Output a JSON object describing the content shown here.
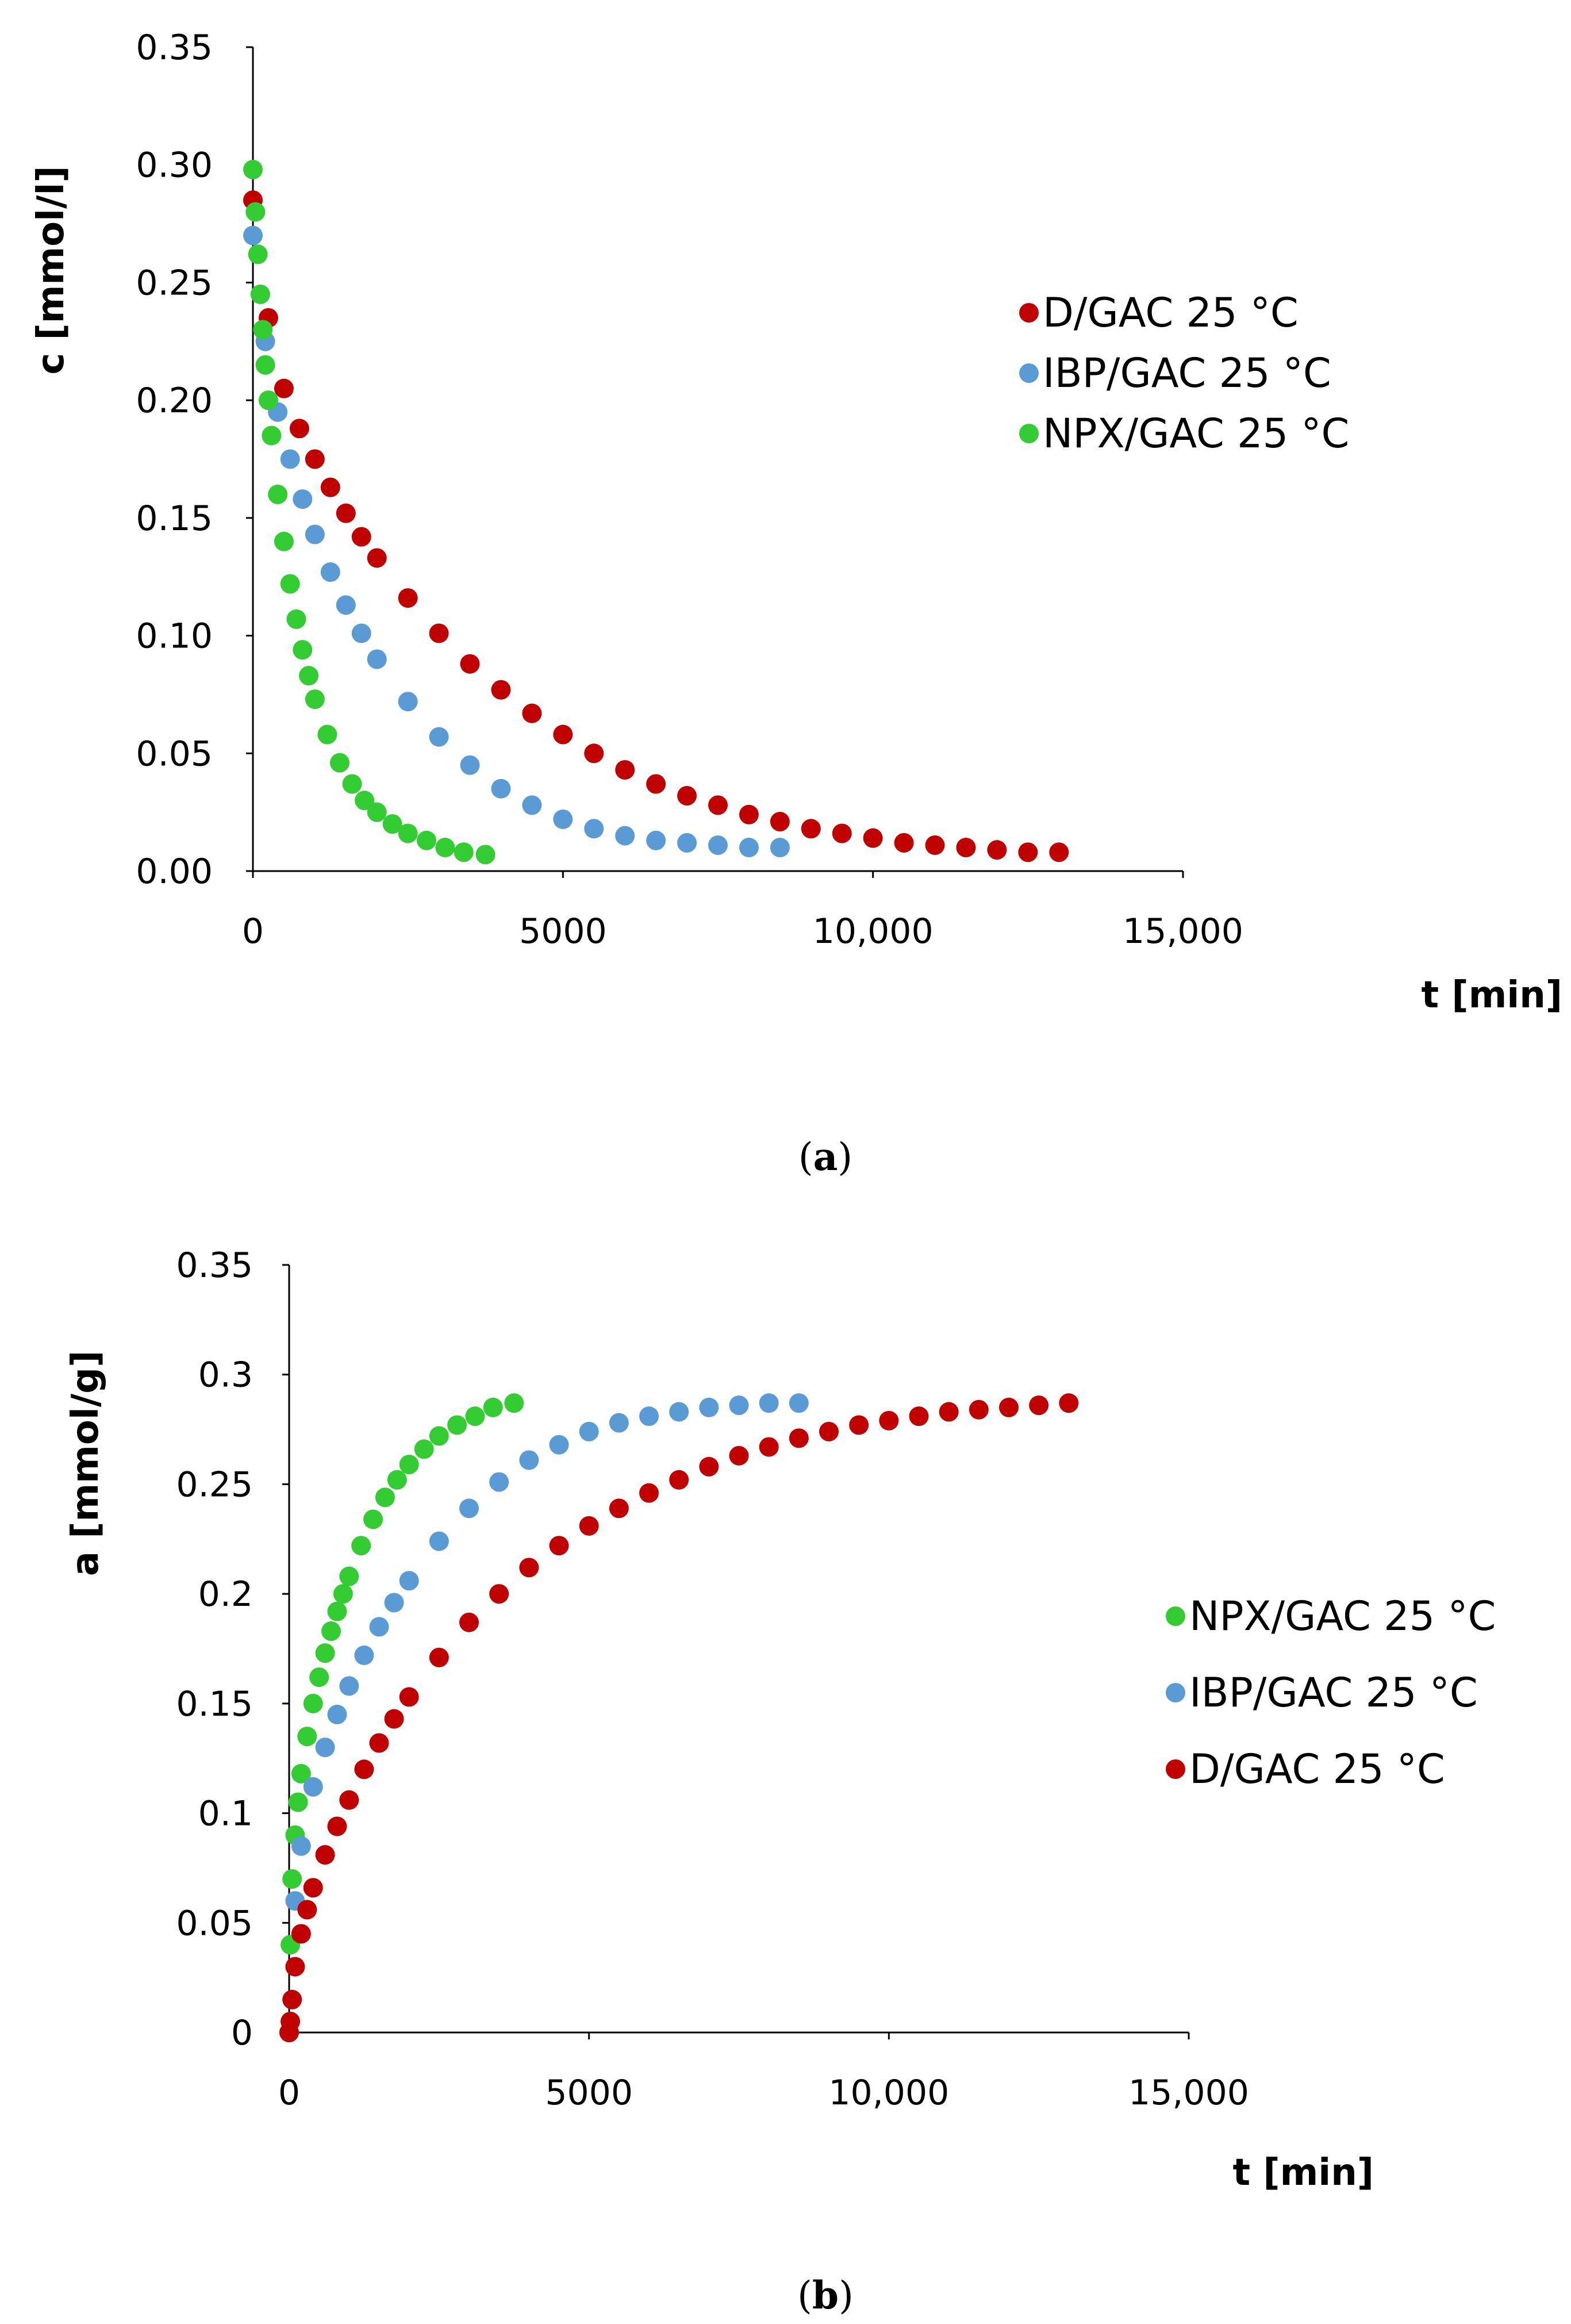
{
  "chart_data": [
    {
      "type": "scatter",
      "caption_letter": "a",
      "xlabel": "t [min]",
      "ylabel": "c [mmol/l]",
      "xlim": [
        0,
        15000
      ],
      "ylim": [
        0,
        0.35
      ],
      "xticks": [
        0,
        5000,
        10000,
        15000
      ],
      "xtick_labels": [
        "0",
        "5000",
        "10,000",
        "15,000"
      ],
      "yticks": [
        0,
        0.05,
        0.1,
        0.15,
        0.2,
        0.25,
        0.3,
        0.35
      ],
      "ytick_labels": [
        "0.00",
        "0.05",
        "0.10",
        "0.15",
        "0.20",
        "0.25",
        "0.30",
        "0.35"
      ],
      "grid": false,
      "legend": "right",
      "series": [
        {
          "name": "D/GAC 25 °C",
          "color": "#c00000",
          "x": [
            0,
            250,
            500,
            750,
            1000,
            1250,
            1500,
            1750,
            2000,
            2500,
            3000,
            3500,
            4000,
            4500,
            5000,
            5500,
            6000,
            6500,
            7000,
            7500,
            8000,
            8500,
            9000,
            9500,
            10000,
            10500,
            11000,
            11500,
            12000,
            12500,
            13000
          ],
          "y": [
            0.285,
            0.235,
            0.205,
            0.188,
            0.175,
            0.163,
            0.152,
            0.142,
            0.133,
            0.116,
            0.101,
            0.088,
            0.077,
            0.067,
            0.058,
            0.05,
            0.043,
            0.037,
            0.032,
            0.028,
            0.024,
            0.021,
            0.018,
            0.016,
            0.014,
            0.012,
            0.011,
            0.01,
            0.009,
            0.008,
            0.008
          ]
        },
        {
          "name": "IBP/GAC 25 °C",
          "color": "#5b9bd5",
          "x": [
            0,
            200,
            400,
            600,
            800,
            1000,
            1250,
            1500,
            1750,
            2000,
            2500,
            3000,
            3500,
            4000,
            4500,
            5000,
            5500,
            6000,
            6500,
            7000,
            7500,
            8000,
            8500
          ],
          "y": [
            0.27,
            0.225,
            0.195,
            0.175,
            0.158,
            0.143,
            0.127,
            0.113,
            0.101,
            0.09,
            0.072,
            0.057,
            0.045,
            0.035,
            0.028,
            0.022,
            0.018,
            0.015,
            0.013,
            0.012,
            0.011,
            0.01,
            0.01
          ]
        },
        {
          "name": "NPX/GAC 25 °C",
          "color": "#33cc33",
          "x": [
            0,
            40,
            80,
            120,
            160,
            200,
            250,
            300,
            400,
            500,
            600,
            700,
            800,
            900,
            1000,
            1200,
            1400,
            1600,
            1800,
            2000,
            2250,
            2500,
            2800,
            3100,
            3400,
            3750
          ],
          "y": [
            0.298,
            0.28,
            0.262,
            0.245,
            0.23,
            0.215,
            0.2,
            0.185,
            0.16,
            0.14,
            0.122,
            0.107,
            0.094,
            0.083,
            0.073,
            0.058,
            0.046,
            0.037,
            0.03,
            0.025,
            0.02,
            0.016,
            0.013,
            0.01,
            0.008,
            0.007
          ]
        }
      ]
    },
    {
      "type": "scatter",
      "caption_letter": "b",
      "xlabel": "t [min]",
      "ylabel": "a [mmol/g]",
      "xlim": [
        0,
        15000
      ],
      "ylim": [
        0,
        0.35
      ],
      "xticks": [
        0,
        5000,
        10000,
        15000
      ],
      "xtick_labels": [
        "0",
        "5000",
        "10,000",
        "15,000"
      ],
      "yticks": [
        0,
        0.05,
        0.1,
        0.15,
        0.2,
        0.25,
        0.3,
        0.35
      ],
      "ytick_labels": [
        "0",
        "0.05",
        "0.1",
        "0.15",
        "0.2",
        "0.25",
        "0.3",
        "0.35"
      ],
      "grid": false,
      "legend": "right",
      "series": [
        {
          "name": "NPX/GAC 25 °C",
          "color": "#33cc33",
          "x": [
            0,
            20,
            50,
            100,
            150,
            200,
            300,
            400,
            500,
            600,
            700,
            800,
            900,
            1000,
            1200,
            1400,
            1600,
            1800,
            2000,
            2250,
            2500,
            2800,
            3100,
            3400,
            3750
          ],
          "y": [
            0,
            0.04,
            0.07,
            0.09,
            0.105,
            0.118,
            0.135,
            0.15,
            0.162,
            0.173,
            0.183,
            0.192,
            0.2,
            0.208,
            0.222,
            0.234,
            0.244,
            0.252,
            0.259,
            0.266,
            0.272,
            0.277,
            0.281,
            0.285,
            0.287
          ]
        },
        {
          "name": "IBP/GAC 25 °C",
          "color": "#5b9bd5",
          "x": [
            0,
            100,
            200,
            400,
            600,
            800,
            1000,
            1250,
            1500,
            1750,
            2000,
            2500,
            3000,
            3500,
            4000,
            4500,
            5000,
            5500,
            6000,
            6500,
            7000,
            7500,
            8000,
            8500
          ],
          "y": [
            0,
            0.06,
            0.085,
            0.112,
            0.13,
            0.145,
            0.158,
            0.172,
            0.185,
            0.196,
            0.206,
            0.224,
            0.239,
            0.251,
            0.261,
            0.268,
            0.274,
            0.278,
            0.281,
            0.283,
            0.285,
            0.286,
            0.287,
            0.287
          ]
        },
        {
          "name": "D/GAC 25 °C",
          "color": "#c00000",
          "x": [
            0,
            20,
            50,
            100,
            200,
            300,
            400,
            600,
            800,
            1000,
            1250,
            1500,
            1750,
            2000,
            2500,
            3000,
            3500,
            4000,
            4500,
            5000,
            5500,
            6000,
            6500,
            7000,
            7500,
            8000,
            8500,
            9000,
            9500,
            10000,
            10500,
            11000,
            11500,
            12000,
            12500,
            13000
          ],
          "y": [
            0,
            0.005,
            0.015,
            0.03,
            0.045,
            0.056,
            0.066,
            0.081,
            0.094,
            0.106,
            0.12,
            0.132,
            0.143,
            0.153,
            0.171,
            0.187,
            0.2,
            0.212,
            0.222,
            0.231,
            0.239,
            0.246,
            0.252,
            0.258,
            0.263,
            0.267,
            0.271,
            0.274,
            0.277,
            0.279,
            0.281,
            0.283,
            0.284,
            0.285,
            0.286,
            0.287
          ]
        }
      ]
    }
  ]
}
